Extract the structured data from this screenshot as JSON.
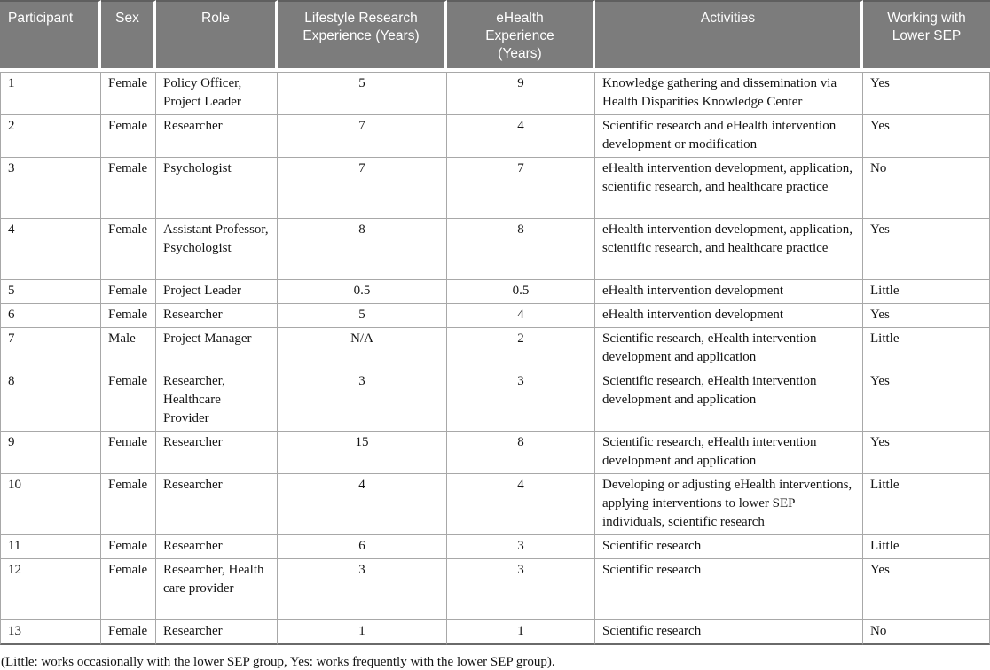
{
  "table": {
    "columns": [
      {
        "label": "Participant"
      },
      {
        "label": "Sex"
      },
      {
        "label": "Role"
      },
      {
        "label": "Lifestyle Research Experience (Years)"
      },
      {
        "label": "eHealth Experience (Years)"
      },
      {
        "label": "Activities"
      },
      {
        "label": "Working with Lower SEP"
      }
    ],
    "rows": [
      {
        "participant": "1",
        "sex": "Female",
        "role": "Policy Officer, Project Leader",
        "lifestyle_years": "5",
        "ehealth_years": "9",
        "activities": "Knowledge gathering and dissemination via Health Disparities Knowledge Center",
        "working_with_lower_sep": "Yes",
        "lines": "2"
      },
      {
        "participant": "2",
        "sex": "Female",
        "role": "Researcher",
        "lifestyle_years": "7",
        "ehealth_years": "4",
        "activities": "Scientific research and eHealth intervention development or modification",
        "working_with_lower_sep": "Yes",
        "lines": "2"
      },
      {
        "participant": "3",
        "sex": "Female",
        "role": "Psychologist",
        "lifestyle_years": "7",
        "ehealth_years": "7",
        "activities": "eHealth intervention development, application, scientific research, and healthcare practice",
        "working_with_lower_sep": "No",
        "lines": "3"
      },
      {
        "participant": "4",
        "sex": "Female",
        "role": "Assistant Professor, Psychologist",
        "lifestyle_years": "8",
        "ehealth_years": "8",
        "activities": "eHealth intervention development, application, scientific research, and healthcare practice",
        "working_with_lower_sep": "Yes",
        "lines": "3"
      },
      {
        "participant": "5",
        "sex": "Female",
        "role": "Project Leader",
        "lifestyle_years": "0.5",
        "ehealth_years": "0.5",
        "activities": "eHealth intervention development",
        "working_with_lower_sep": "Little",
        "lines": "1"
      },
      {
        "participant": "6",
        "sex": "Female",
        "role": "Researcher",
        "lifestyle_years": "5",
        "ehealth_years": "4",
        "activities": "eHealth intervention development",
        "working_with_lower_sep": "Yes",
        "lines": "1"
      },
      {
        "participant": "7",
        "sex": "Male",
        "role": "Project Manager",
        "lifestyle_years": "N/A",
        "ehealth_years": "2",
        "activities": "Scientific research, eHealth intervention development and application",
        "working_with_lower_sep": "Little",
        "lines": "2"
      },
      {
        "participant": "8",
        "sex": "Female",
        "role": "Researcher, Healthcare Provider",
        "lifestyle_years": "3",
        "ehealth_years": "3",
        "activities": "Scientific research, eHealth intervention development and application",
        "working_with_lower_sep": "Yes",
        "lines": "3"
      },
      {
        "participant": "9",
        "sex": "Female",
        "role": "Researcher",
        "lifestyle_years": "15",
        "ehealth_years": "8",
        "activities": "Scientific research, eHealth intervention development and application",
        "working_with_lower_sep": "Yes",
        "lines": "2"
      },
      {
        "participant": "10",
        "sex": "Female",
        "role": "Researcher",
        "lifestyle_years": "4",
        "ehealth_years": "4",
        "activities": "Developing or adjusting eHealth interventions, applying interventions to lower SEP individuals, scientific research",
        "working_with_lower_sep": "Little",
        "lines": "3"
      },
      {
        "participant": "11",
        "sex": "Female",
        "role": "Researcher",
        "lifestyle_years": "6",
        "ehealth_years": "3",
        "activities": "Scientific research",
        "working_with_lower_sep": "Little",
        "lines": "1"
      },
      {
        "participant": "12",
        "sex": "Female",
        "role": "Researcher, Health care provider",
        "lifestyle_years": "3",
        "ehealth_years": "3",
        "activities": "Scientific research",
        "working_with_lower_sep": "Yes",
        "lines": "3"
      },
      {
        "participant": "13",
        "sex": "Female",
        "role": "Researcher",
        "lifestyle_years": "1",
        "ehealth_years": "1",
        "activities": "Scientific research",
        "working_with_lower_sep": "No",
        "lines": "1"
      }
    ]
  },
  "footnote": "(Little: works occasionally with the lower SEP group, Yes: works frequently with the lower SEP group).",
  "colors": {
    "header_bg": "#7c7c7c",
    "header_text": "#ffffff",
    "body_text": "#141414",
    "grid_border": "#a8a8a8",
    "strong_border": "#5f5f5f"
  }
}
